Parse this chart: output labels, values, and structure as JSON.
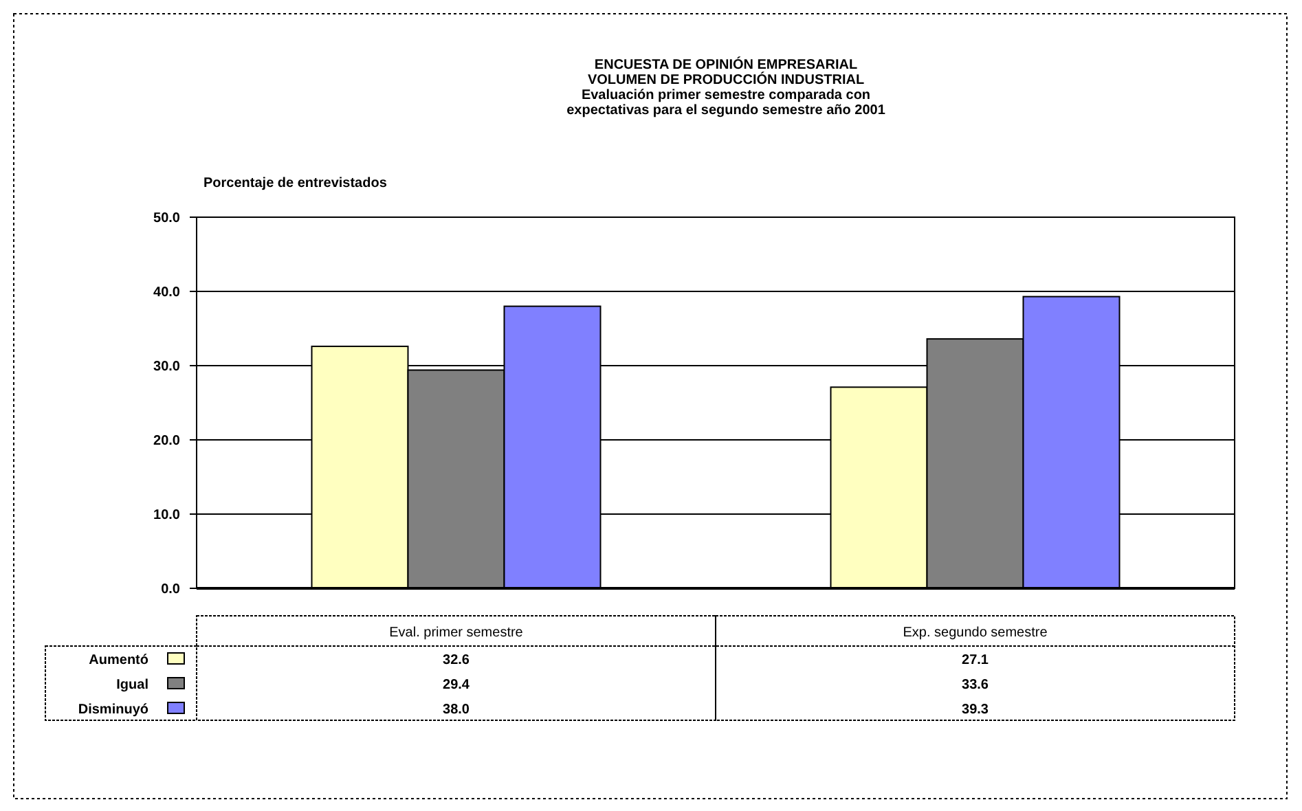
{
  "chart_data": {
    "type": "bar",
    "title": "ENCUESTA DE OPINIÓN EMPRESARIAL\nVOLUMEN DE PRODUCCIÓN INDUSTRIAL",
    "subtitle": "Evaluación primer semestre comparada con\nexpectativas para el segundo semestre año 2001",
    "ylabel": "Porcentaje de entrevistados",
    "categories": [
      "Eval. primer semestre",
      "Exp. segundo semestre"
    ],
    "series": [
      {
        "name": "Aumentó",
        "color": "#ffffc0",
        "values": [
          32.6,
          27.1
        ],
        "value_labels": [
          "32.6",
          "27.1"
        ]
      },
      {
        "name": "Igual",
        "color": "#808080",
        "values": [
          29.4,
          33.6
        ],
        "value_labels": [
          "29.4",
          "33.6"
        ]
      },
      {
        "name": "Disminuyó",
        "color": "#8080ff",
        "values": [
          38.0,
          39.3
        ],
        "value_labels": [
          "38.0",
          "39.3"
        ]
      }
    ],
    "ylim": [
      0,
      50
    ],
    "yticks": [
      {
        "value": 0,
        "label": "0.0"
      },
      {
        "value": 10,
        "label": "10.0"
      },
      {
        "value": 20,
        "label": "20.0"
      },
      {
        "value": 30,
        "label": "30.0"
      },
      {
        "value": 40,
        "label": "40.0"
      },
      {
        "value": 50,
        "label": "50.0"
      }
    ],
    "grid": "y",
    "legend": "left"
  }
}
